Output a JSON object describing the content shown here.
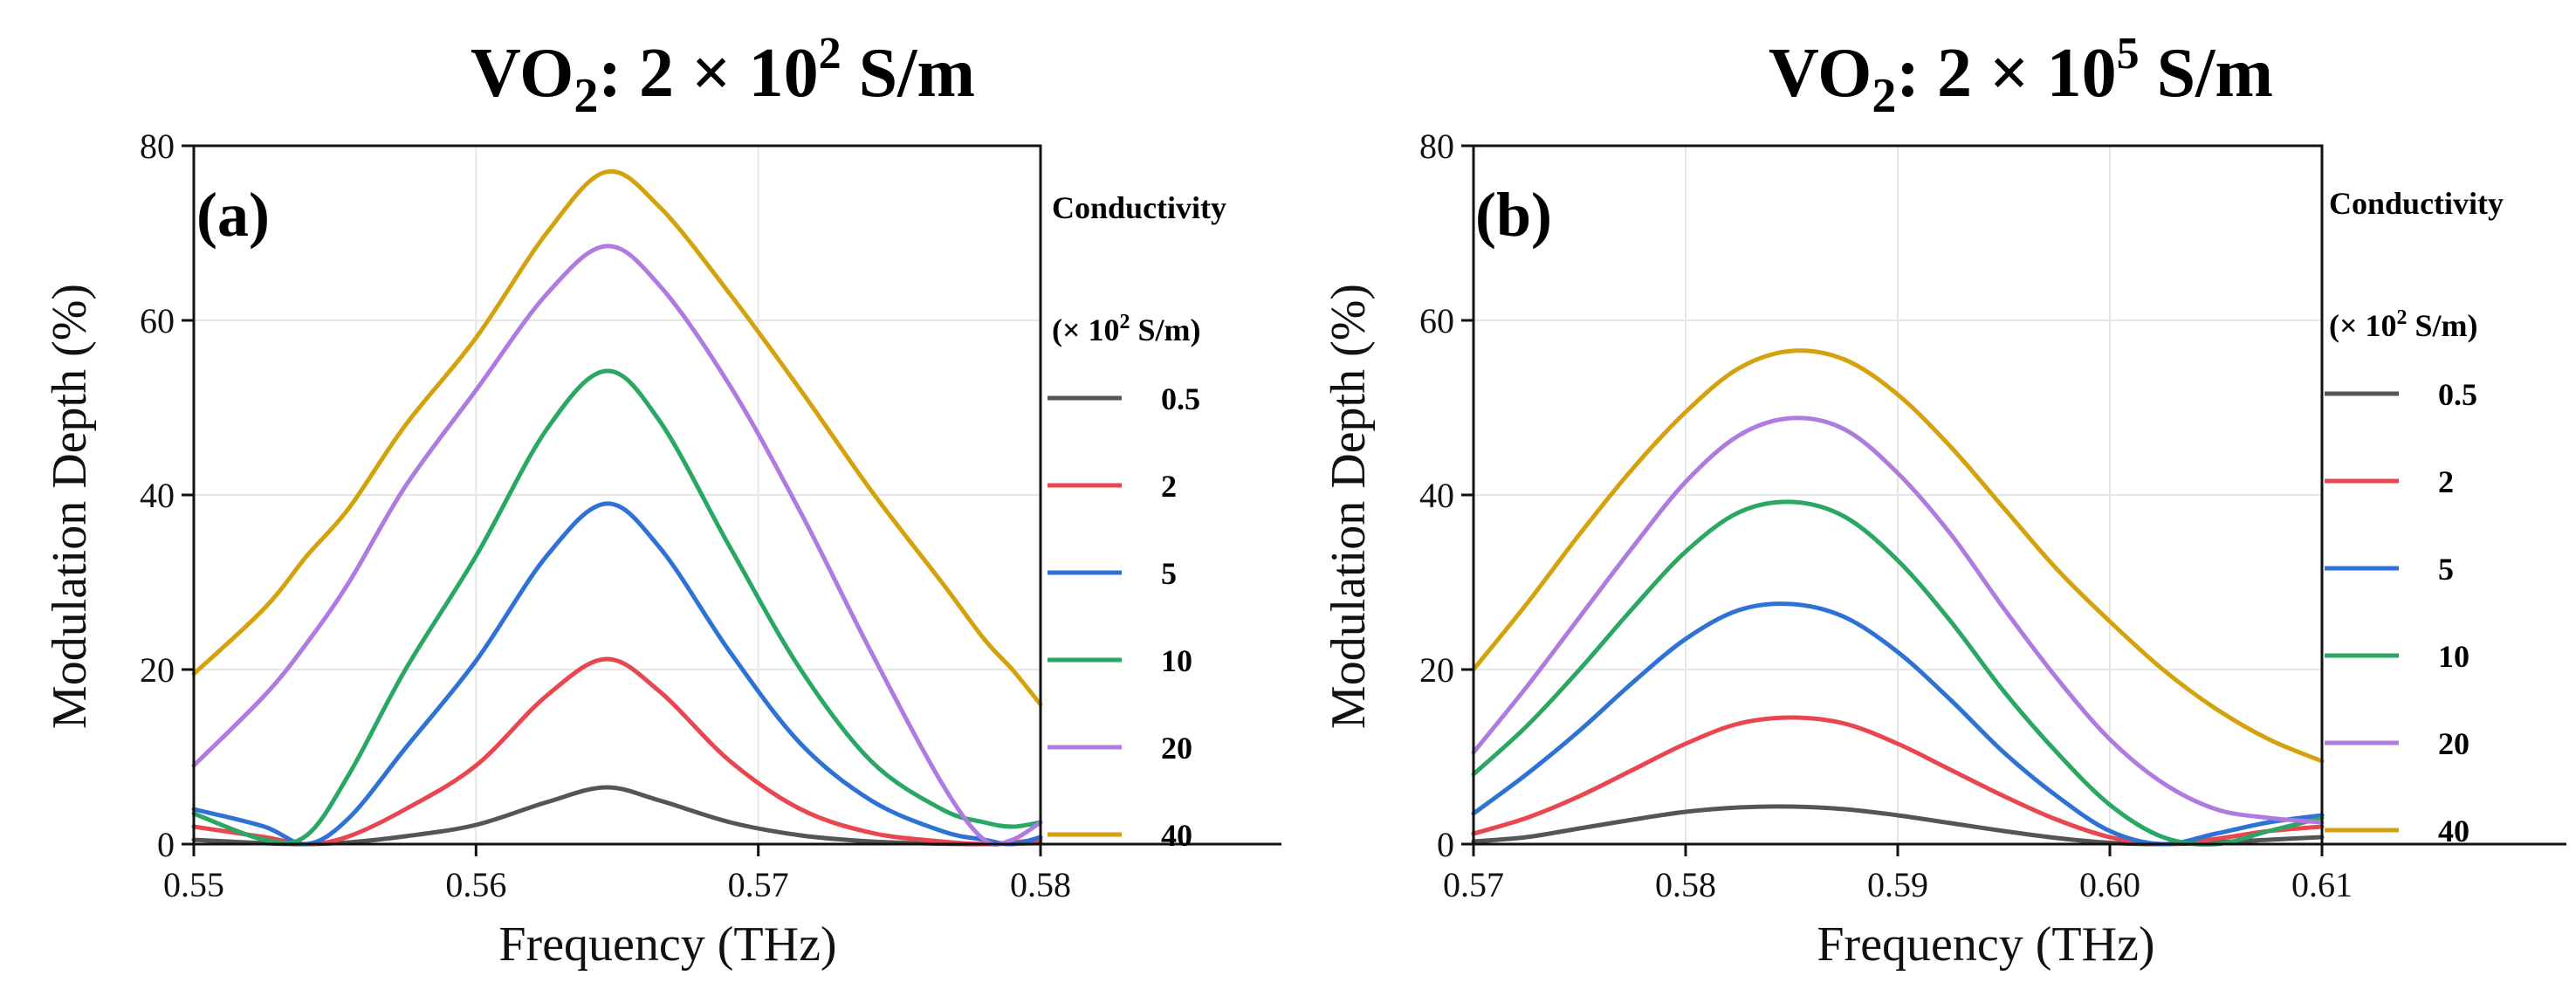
{
  "chart_data": [
    {
      "type": "line",
      "panel": "(a)",
      "title_main": "VO",
      "title_sub": "2",
      "title_rest": ": 2 × 10",
      "title_sup": "2",
      "title_unit": " S/m",
      "xlabel": "Frequency (THz)",
      "ylabel": "Modulation Depth (%)",
      "xlim": [
        0.55,
        0.58
      ],
      "ylim": [
        0,
        80
      ],
      "xticks": [
        "0.55",
        "0.56",
        "0.57",
        "0.58"
      ],
      "yticks": [
        "0",
        "20",
        "40",
        "60",
        "80"
      ],
      "legend": {
        "title_line1": "Conductivity",
        "title_line2_pre": "(× 10",
        "title_line2_sup": "2",
        "title_line2_post": " S/m)"
      },
      "x": [
        0.55,
        0.5525,
        0.554,
        0.5555,
        0.5575,
        0.56,
        0.5625,
        0.5646,
        0.5665,
        0.569,
        0.5715,
        0.574,
        0.5765,
        0.578,
        0.579,
        0.58
      ],
      "series": [
        {
          "name": "0.5",
          "color": "#555555",
          "values": [
            0.5,
            0.1,
            0,
            0.2,
            0.9,
            2.2,
            4.8,
            6.5,
            5.0,
            2.5,
            1.0,
            0.3,
            0.05,
            0,
            0.05,
            0.1
          ]
        },
        {
          "name": "2",
          "color": "#e8474f",
          "values": [
            2.0,
            0.8,
            0,
            0.9,
            4.0,
            9.0,
            17.0,
            21.2,
            17.5,
            9.5,
            4.0,
            1.3,
            0.3,
            0,
            0.2,
            0.5
          ]
        },
        {
          "name": "5",
          "color": "#2f72d6",
          "values": [
            4.0,
            2.0,
            0,
            3.0,
            11.0,
            21.0,
            33.0,
            39.0,
            34.0,
            22.0,
            11.5,
            5.0,
            1.5,
            0.5,
            0,
            0.8
          ]
        },
        {
          "name": "10",
          "color": "#2aa765",
          "values": [
            3.5,
            0.5,
            1.0,
            8.0,
            20.0,
            33.0,
            47.5,
            54.2,
            48.5,
            34.0,
            20.0,
            9.5,
            4.0,
            2.5,
            2.0,
            2.5
          ]
        },
        {
          "name": "20",
          "color": "#b07be0",
          "values": [
            9.0,
            17.0,
            23.0,
            30.0,
            41.0,
            52.0,
            63.0,
            68.5,
            64.0,
            52.5,
            38.0,
            22.0,
            7.0,
            0.5,
            0.5,
            2.5
          ]
        },
        {
          "name": "40",
          "color": "#d4a20c",
          "values": [
            19.5,
            27.0,
            33.0,
            38.5,
            48.0,
            58.0,
            70.0,
            77.0,
            73.0,
            63.0,
            52.0,
            40.5,
            30.0,
            23.5,
            20.0,
            16.0
          ]
        }
      ]
    },
    {
      "type": "line",
      "panel": "(b)",
      "title_main": "VO",
      "title_sub": "2",
      "title_rest": ": 2 × 10",
      "title_sup": "5",
      "title_unit": " S/m",
      "xlabel": "Frequency (THz)",
      "ylabel": "Modulation Depth (%)",
      "xlim": [
        0.57,
        0.61
      ],
      "ylim": [
        0,
        80
      ],
      "xticks": [
        "0.57",
        "0.58",
        "0.59",
        "0.60",
        "0.61"
      ],
      "yticks": [
        "0",
        "20",
        "40",
        "60",
        "80"
      ],
      "legend": {
        "title_line1": "Conductivity",
        "title_line2_pre": "(× 10",
        "title_line2_sup": "2",
        "title_line2_post": " S/m)"
      },
      "x": [
        0.57,
        0.5725,
        0.575,
        0.5775,
        0.58,
        0.5825,
        0.585,
        0.5875,
        0.59,
        0.5925,
        0.595,
        0.5975,
        0.6,
        0.6025,
        0.605,
        0.6075,
        0.61
      ],
      "series": [
        {
          "name": "0.5",
          "color": "#555555",
          "values": [
            0.3,
            0.8,
            1.8,
            2.8,
            3.7,
            4.2,
            4.3,
            4.0,
            3.3,
            2.4,
            1.5,
            0.7,
            0.15,
            0,
            0.2,
            0.5,
            0.8
          ]
        },
        {
          "name": "2",
          "color": "#e8474f",
          "values": [
            1.2,
            3.0,
            5.5,
            8.5,
            11.5,
            13.8,
            14.5,
            13.8,
            11.5,
            8.5,
            5.5,
            2.8,
            0.8,
            0,
            0.6,
            1.5,
            2.0
          ]
        },
        {
          "name": "5",
          "color": "#2f72d6",
          "values": [
            3.5,
            8.0,
            13.0,
            18.5,
            23.5,
            26.8,
            27.5,
            26.0,
            22.0,
            16.5,
            10.5,
            5.5,
            1.5,
            0,
            1.2,
            2.5,
            3.3
          ]
        },
        {
          "name": "10",
          "color": "#2aa765",
          "values": [
            8.0,
            13.5,
            20.0,
            27.0,
            33.5,
            38.0,
            39.2,
            37.5,
            32.5,
            25.5,
            17.5,
            10.5,
            4.5,
            0.8,
            0,
            1.5,
            3.0
          ]
        },
        {
          "name": "20",
          "color": "#b07be0",
          "values": [
            10.5,
            18.0,
            26.0,
            34.0,
            41.5,
            46.8,
            48.8,
            47.5,
            42.5,
            35.5,
            27.0,
            19.0,
            12.0,
            7.0,
            4.0,
            3.0,
            2.5
          ]
        },
        {
          "name": "40",
          "color": "#d4a20c",
          "values": [
            20.0,
            27.5,
            35.5,
            43.0,
            49.5,
            54.5,
            56.5,
            55.5,
            51.5,
            45.5,
            38.5,
            31.5,
            25.5,
            20.0,
            15.5,
            12.0,
            9.5
          ]
        }
      ]
    }
  ]
}
